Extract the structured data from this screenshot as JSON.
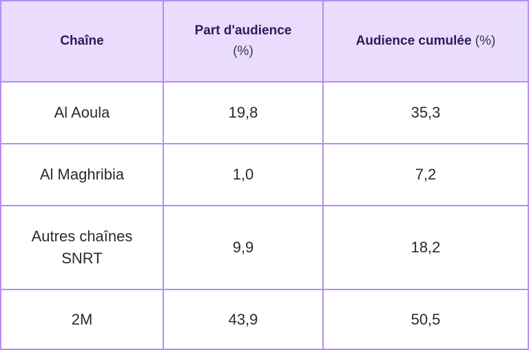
{
  "table": {
    "headers": [
      {
        "label": "Chaîne",
        "unit": ""
      },
      {
        "label": "Part d'audience",
        "unit": "(%)"
      },
      {
        "label": "Audience cumulée",
        "unit": "(%)"
      }
    ],
    "rows": [
      {
        "chaine": "Al Aoula",
        "part": "19,8",
        "cumulee": "35,3"
      },
      {
        "chaine": "Al Maghribia",
        "part": "1,0",
        "cumulee": "7,2"
      },
      {
        "chaine": "Autres chaînes SNRT",
        "chaine_line1": "Autres chaînes",
        "chaine_line2": "SNRT",
        "part": "9,9",
        "cumulee": "18,2"
      },
      {
        "chaine": "2M",
        "part": "43,9",
        "cumulee": "50,5"
      }
    ],
    "colors": {
      "border": "#b58df2",
      "header_bg": "#e9dcfc",
      "header_text": "#2e1a5a"
    }
  }
}
